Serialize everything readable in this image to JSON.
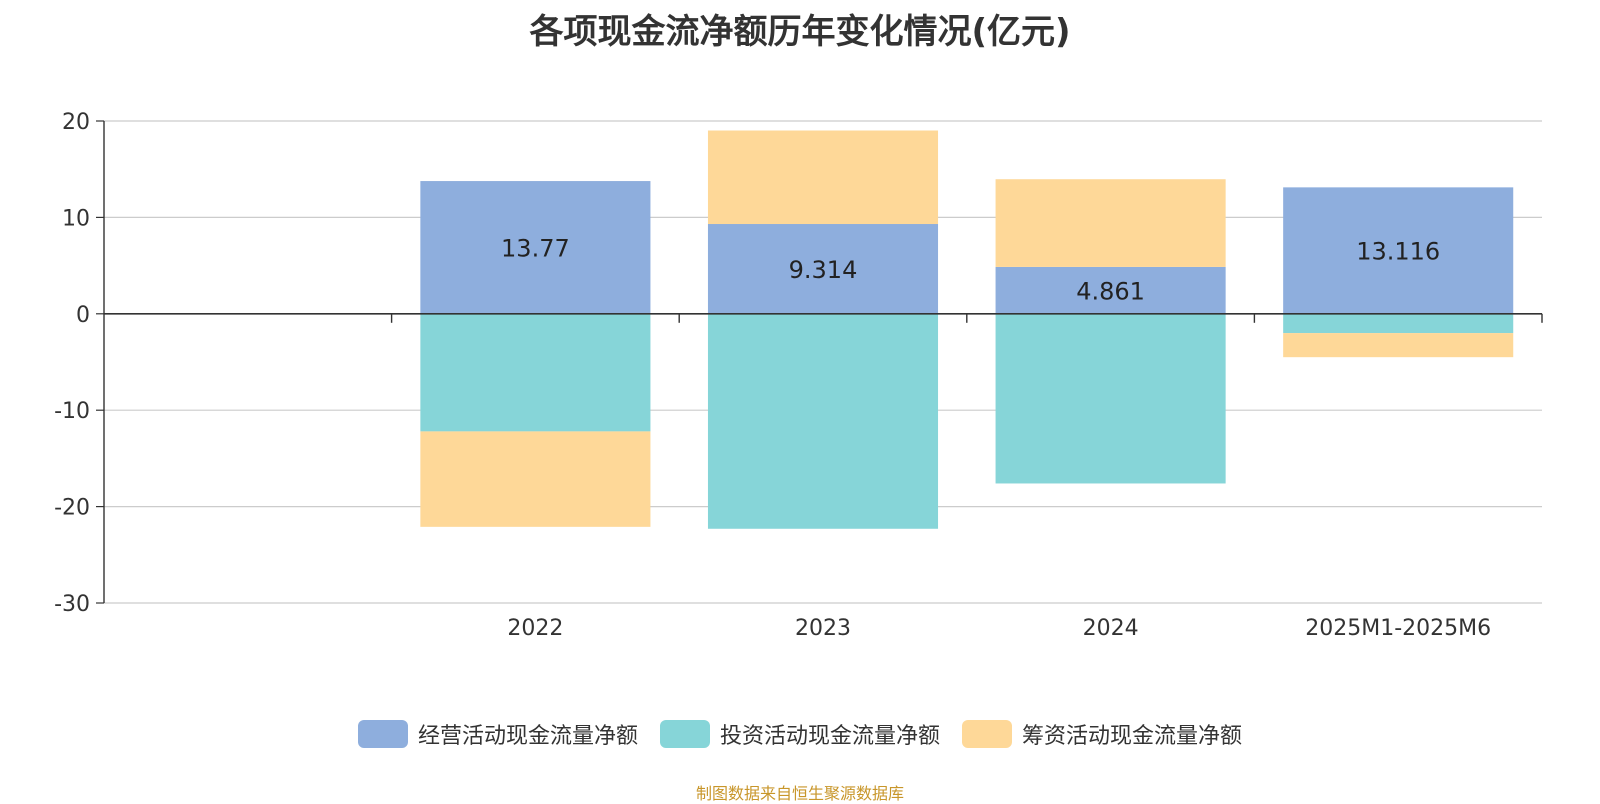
{
  "chart_data": {
    "type": "bar",
    "stacked": true,
    "title": "各项现金流净额历年变化情况(亿元)",
    "categories": [
      "",
      "2022",
      "2023",
      "2024",
      "2025M1-2025M6"
    ],
    "series": [
      {
        "name": "经营活动现金流量净额",
        "color": "#8eaedd",
        "values": [
          null,
          13.77,
          9.314,
          4.861,
          13.116
        ],
        "show_labels": true
      },
      {
        "name": "投资活动现金流量净额",
        "color": "#86d5d8",
        "values": [
          null,
          -12.2,
          -22.3,
          -17.6,
          -2.0
        ],
        "show_labels": false
      },
      {
        "name": "筹资活动现金流量净额",
        "color": "#fed898",
        "values": [
          null,
          -9.9,
          9.7,
          9.1,
          -2.5
        ],
        "show_labels": false
      }
    ],
    "y_ticks": [
      "20",
      "10",
      "0",
      "-10",
      "-20",
      "-30"
    ],
    "ylim": [
      -30,
      20
    ],
    "grid": true,
    "legend_position": "bottom"
  },
  "source_note": "制图数据来自恒生聚源数据库"
}
